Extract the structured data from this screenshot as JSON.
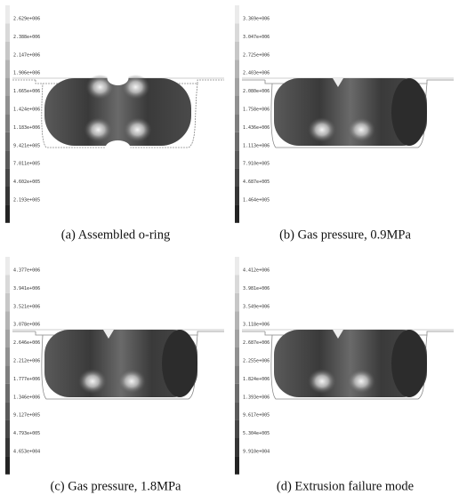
{
  "panels": [
    {
      "caption": "(a) Assembled o-ring",
      "legend": [
        "2.629e+006",
        "2.388e+006",
        "2.147e+006",
        "1.906e+006",
        "1.665e+006",
        "1.424e+006",
        "1.183e+006",
        "9.421e+005",
        "7.011e+005",
        "4.602e+005",
        "2.193e+005"
      ]
    },
    {
      "caption": "(b) Gas pressure, 0.9MPa",
      "legend": [
        "3.369e+006",
        "3.047e+006",
        "2.725e+006",
        "2.403e+006",
        "2.080e+006",
        "1.758e+006",
        "1.436e+006",
        "1.113e+006",
        "7.910e+005",
        "4.687e+005",
        "1.464e+005"
      ]
    },
    {
      "caption": "(c) Gas pressure, 1.8MPa",
      "legend": [
        "4.377e+006",
        "3.941e+006",
        "3.521e+006",
        "3.078e+006",
        "2.646e+006",
        "2.212e+006",
        "1.777e+006",
        "1.346e+006",
        "9.127e+005",
        "4.793e+005",
        "4.653e+004"
      ]
    },
    {
      "caption": "(d) Extrusion failure mode",
      "legend": [
        "4.412e+006",
        "3.981e+006",
        "3.549e+006",
        "3.118e+006",
        "2.687e+006",
        "2.255e+006",
        "1.824e+006",
        "1.393e+006",
        "9.617e+005",
        "5.304e+005",
        "9.910e+004"
      ]
    }
  ]
}
